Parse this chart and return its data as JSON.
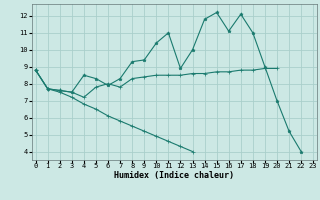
{
  "xlabel": "Humidex (Indice chaleur)",
  "ylabel": "",
  "bg_color": "#cce8e4",
  "grid_color": "#aacfcb",
  "line_color": "#1a7a6e",
  "x_ticks": [
    0,
    1,
    2,
    3,
    4,
    5,
    6,
    7,
    8,
    9,
    10,
    11,
    12,
    13,
    14,
    15,
    16,
    17,
    18,
    19,
    20,
    21,
    22,
    23
  ],
  "y_ticks": [
    4,
    5,
    6,
    7,
    8,
    9,
    10,
    11,
    12
  ],
  "ylim": [
    3.5,
    12.7
  ],
  "xlim": [
    -0.3,
    23.3
  ],
  "line1_y": [
    8.8,
    7.7,
    7.6,
    7.5,
    8.5,
    8.3,
    7.9,
    8.3,
    9.3,
    9.4,
    10.4,
    11.0,
    8.9,
    10.0,
    11.8,
    12.2,
    11.1,
    12.1,
    11.0,
    9.0,
    7.0,
    5.2,
    4.0,
    null
  ],
  "line2_y": [
    8.8,
    7.7,
    7.6,
    7.5,
    7.2,
    7.8,
    8.0,
    7.8,
    8.3,
    8.4,
    8.5,
    8.5,
    8.5,
    8.6,
    8.6,
    8.7,
    8.7,
    8.8,
    8.8,
    8.9,
    8.9,
    null,
    null,
    null
  ],
  "line3_y": [
    8.8,
    7.7,
    7.5,
    7.2,
    6.8,
    6.5,
    6.1,
    5.8,
    5.5,
    5.2,
    4.9,
    4.6,
    4.3,
    4.0,
    null,
    null,
    null,
    null,
    null,
    null,
    null,
    null,
    null,
    null
  ],
  "tick_fontsize": 5.0,
  "xlabel_fontsize": 6.0,
  "lw": 0.8,
  "ms": 2.5
}
